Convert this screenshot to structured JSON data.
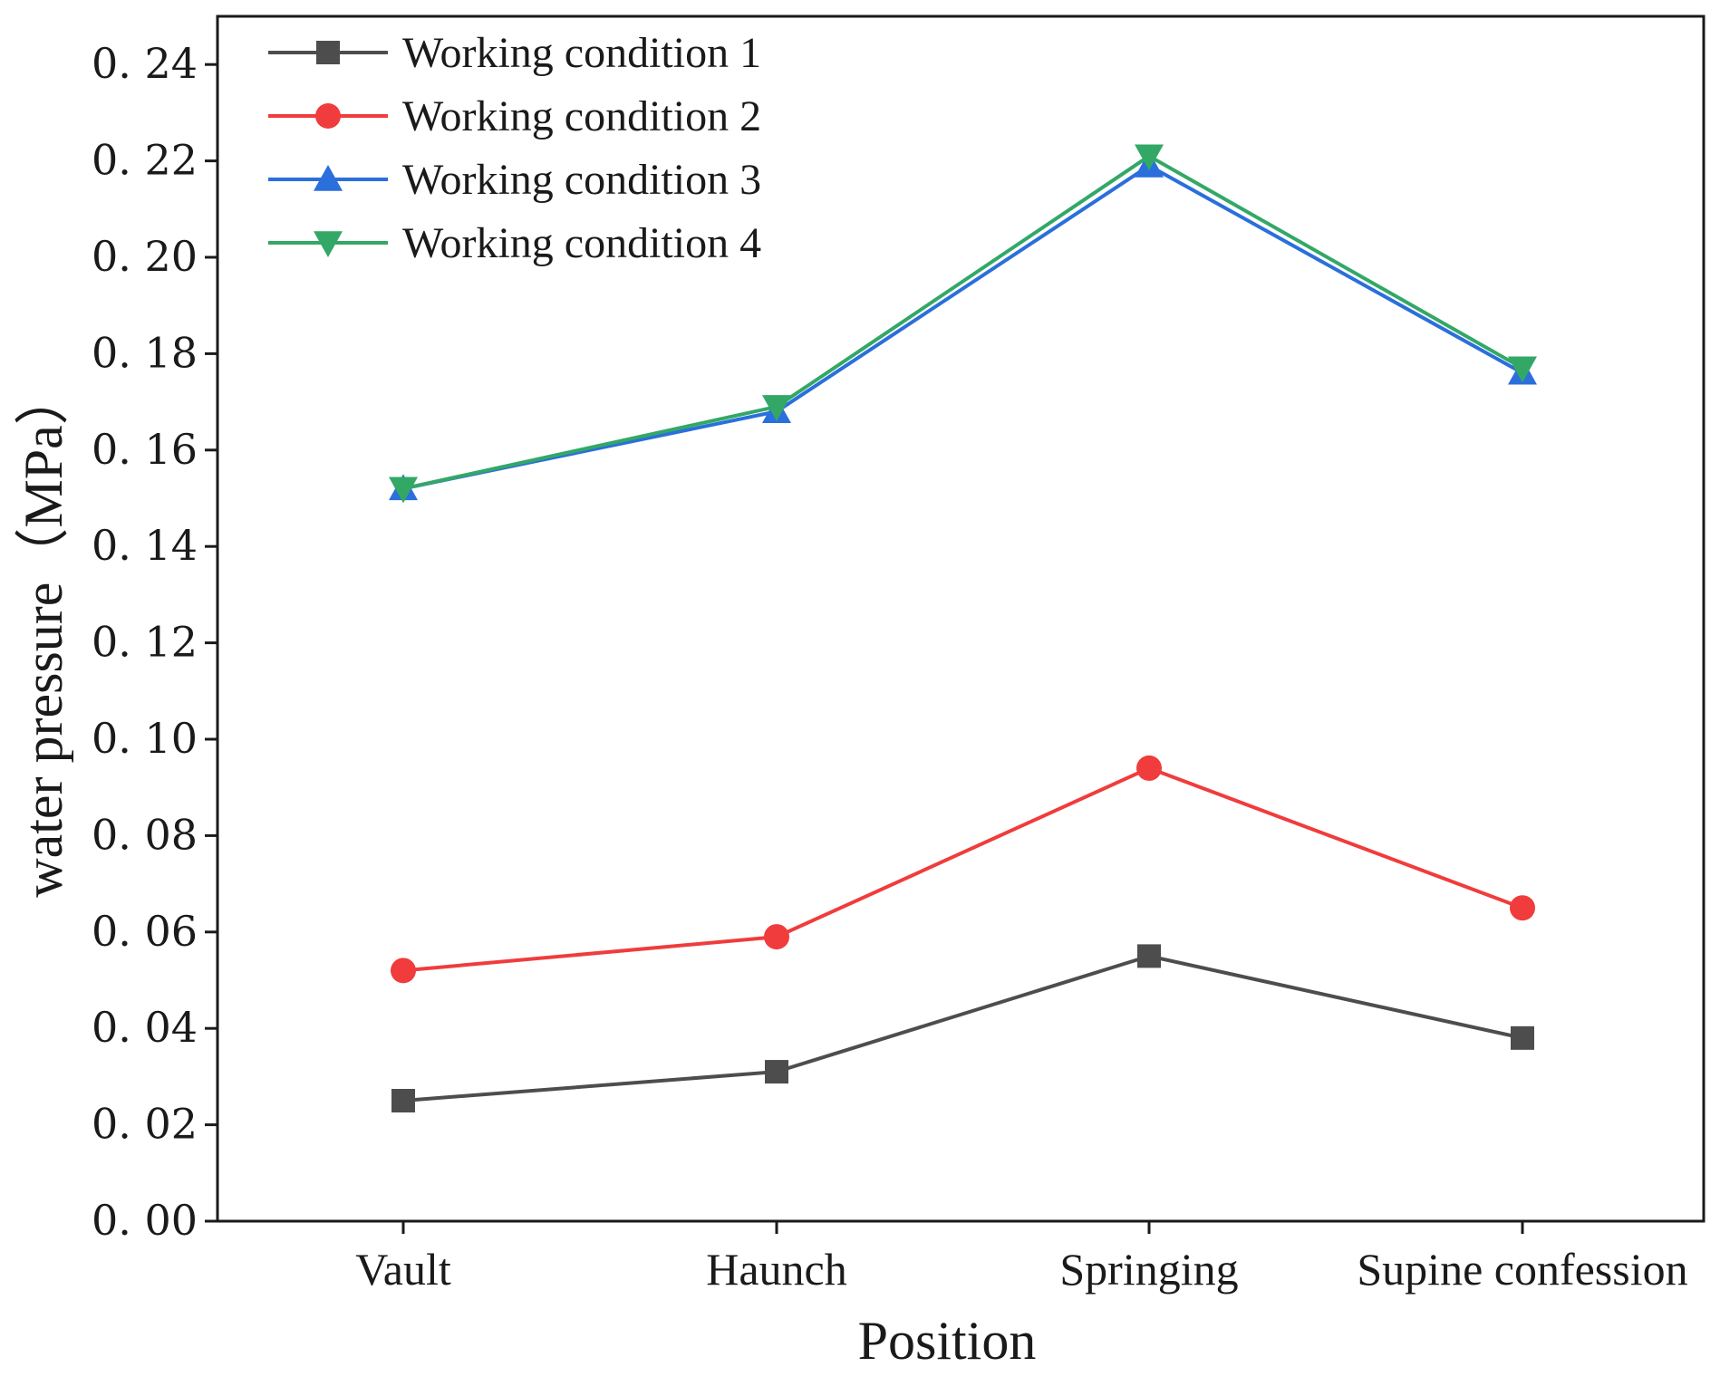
{
  "chart_data": {
    "type": "line",
    "title": "",
    "xlabel": "Position",
    "ylabel": "water pressure（MPa）",
    "categories": [
      "Vault",
      "Haunch",
      "Springing",
      "Supine confession"
    ],
    "ylim": [
      0,
      0.25
    ],
    "yticks": [
      "0. 00",
      "0. 02",
      "0. 04",
      "0. 06",
      "0. 08",
      "0. 10",
      "0. 12",
      "0. 14",
      "0. 16",
      "0. 18",
      "0. 20",
      "0. 22",
      "0. 24"
    ],
    "ytick_values": [
      0,
      0.02,
      0.04,
      0.06,
      0.08,
      0.1,
      0.12,
      0.14,
      0.16,
      0.18,
      0.2,
      0.22,
      0.24
    ],
    "grid": false,
    "legend_position": "top-left",
    "series": [
      {
        "name": "Working condition 1",
        "values": [
          0.025,
          0.031,
          0.055,
          0.038
        ],
        "color": "#4d4d4d",
        "marker": "square"
      },
      {
        "name": "Working condition 2",
        "values": [
          0.052,
          0.059,
          0.094,
          0.065
        ],
        "color": "#f03c3c",
        "marker": "circle"
      },
      {
        "name": "Working condition 3",
        "values": [
          0.152,
          0.168,
          0.219,
          0.176
        ],
        "color": "#2a6fdb",
        "marker": "triangle-up"
      },
      {
        "name": "Working condition 4",
        "values": [
          0.152,
          0.169,
          0.221,
          0.177
        ],
        "color": "#33a866",
        "marker": "triangle-down"
      }
    ]
  }
}
